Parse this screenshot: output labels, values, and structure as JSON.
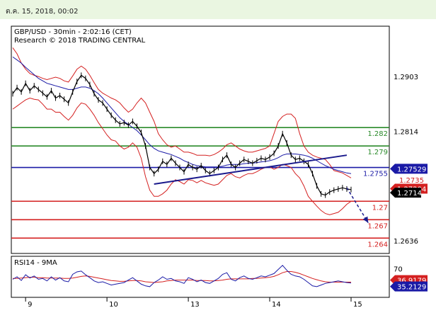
{
  "header": {
    "timestamp": "ต.ค. 15, 2018, 00:02"
  },
  "chart_data": [
    {
      "type": "line",
      "title": "GBP/USD - 30min - 2:02:16 (CET)",
      "subtitle": "Research © 2018 TRADING CENTRAL",
      "ylim": [
        1.2615,
        1.2985
      ],
      "y_ticks": [
        {
          "value": 1.2903,
          "label": "1.2903"
        },
        {
          "value": 1.2814,
          "label": "1.2814"
        },
        {
          "value": 1.2636,
          "label": "1.2636"
        }
      ],
      "x_ticks": [
        {
          "index": 3,
          "label": "9"
        },
        {
          "index": 22,
          "label": "10"
        },
        {
          "index": 41,
          "label": "13"
        },
        {
          "index": 60,
          "label": "14"
        },
        {
          "index": 79,
          "label": "15"
        }
      ],
      "levels": [
        {
          "value": 1.282,
          "label": "1.282",
          "color": "#2a8a2a"
        },
        {
          "value": 1.279,
          "label": "1.279",
          "color": "#2a8a2a"
        },
        {
          "value": 1.2755,
          "label": "1.2755",
          "color": "#1a1aa6"
        },
        {
          "value": 1.27,
          "label": "1.27",
          "color": "#d42020"
        },
        {
          "value": 1.267,
          "label": "1.267",
          "color": "#d42020"
        },
        {
          "value": 1.264,
          "label": "1.264",
          "color": "#d42020"
        }
      ],
      "price_boxes": [
        {
          "value": 1.27529,
          "label": "1.27529",
          "bg": "#1a1aa6",
          "fg": "#ffffff"
        },
        {
          "value": 1.27204,
          "label": "1.27204",
          "bg": "#d42020",
          "fg": "#ffffff"
        },
        {
          "value": 1.2714,
          "label": "1.2714",
          "bg": "#000000",
          "fg": "#ffffff"
        }
      ],
      "partial_price_label": "1.2735",
      "trendline": {
        "from": [
          33,
          1.2728
        ],
        "to": [
          78,
          1.2775
        ]
      },
      "forecast_arrow": {
        "from": [
          78,
          1.2722
        ],
        "to": [
          83,
          1.2665
        ]
      },
      "series": [
        {
          "color": "#000000",
          "values": [
            1.2875,
            1.2885,
            1.2878,
            1.2892,
            1.288,
            1.2888,
            1.2882,
            1.2876,
            1.287,
            1.288,
            1.2868,
            1.2872,
            1.2866,
            1.286,
            1.2878,
            1.2895,
            1.2905,
            1.29,
            1.289,
            1.2875,
            1.2865,
            1.286,
            1.285,
            1.284,
            1.2832,
            1.2826,
            1.2828,
            1.2824,
            1.283,
            1.2822,
            1.2812,
            1.279,
            1.2755,
            1.2745,
            1.2752,
            1.2765,
            1.276,
            1.277,
            1.2762,
            1.2755,
            1.2748,
            1.276,
            1.2755,
            1.2752,
            1.2758,
            1.275,
            1.2745,
            1.275,
            1.2755,
            1.2768,
            1.2775,
            1.276,
            1.2755,
            1.2762,
            1.2768,
            1.2765,
            1.2762,
            1.2766,
            1.277,
            1.2768,
            1.2772,
            1.2778,
            1.279,
            1.281,
            1.2795,
            1.2775,
            1.2768,
            1.277,
            1.2765,
            1.276,
            1.2745,
            1.2725,
            1.2712,
            1.271,
            1.2715,
            1.2718,
            1.272,
            1.2722,
            1.272,
            1.2719
          ]
        },
        {
          "color": "#1a1aa6",
          "values": [
            1.2935,
            1.293,
            1.2925,
            1.2918,
            1.2912,
            1.2906,
            1.29,
            1.2896,
            1.2892,
            1.289,
            1.2888,
            1.2886,
            1.2884,
            1.2882,
            1.2882,
            1.2884,
            1.2886,
            1.2886,
            1.2884,
            1.288,
            1.2875,
            1.2868,
            1.286,
            1.2852,
            1.2844,
            1.2836,
            1.283,
            1.2825,
            1.282,
            1.2815,
            1.2808,
            1.28,
            1.2792,
            1.2786,
            1.2782,
            1.278,
            1.2778,
            1.2776,
            1.2773,
            1.277,
            1.2766,
            1.2763,
            1.276,
            1.2758,
            1.2757,
            1.2756,
            1.2756,
            1.2756,
            1.2756,
            1.2757,
            1.2759,
            1.276,
            1.276,
            1.276,
            1.2761,
            1.2762,
            1.2762,
            1.2763,
            1.2764,
            1.2765,
            1.2766,
            1.2768,
            1.2771,
            1.2775,
            1.2777,
            1.2777,
            1.2777,
            1.2776,
            1.2775,
            1.2773,
            1.277,
            1.2766,
            1.2762,
            1.2758,
            1.2755,
            1.2752,
            1.275,
            1.2748,
            1.2746,
            1.2745
          ]
        },
        {
          "color": "#d42020",
          "values": [
            1.295,
            1.294,
            1.2925,
            1.2915,
            1.2908,
            1.2905,
            1.2903,
            1.29,
            1.2898,
            1.29,
            1.2902,
            1.29,
            1.2896,
            1.2894,
            1.2904,
            1.2915,
            1.292,
            1.2915,
            1.2905,
            1.2893,
            1.2882,
            1.2876,
            1.2872,
            1.2868,
            1.2865,
            1.286,
            1.2852,
            1.2845,
            1.285,
            1.286,
            1.2868,
            1.286,
            1.2845,
            1.283,
            1.281,
            1.28,
            1.2792,
            1.2788,
            1.279,
            1.2785,
            1.278,
            1.278,
            1.2778,
            1.2775,
            1.2775,
            1.2775,
            1.2774,
            1.2776,
            1.278,
            1.2785,
            1.2792,
            1.2795,
            1.279,
            1.2785,
            1.2782,
            1.278,
            1.278,
            1.2782,
            1.2784,
            1.2786,
            1.279,
            1.281,
            1.283,
            1.2838,
            1.2842,
            1.2842,
            1.2835,
            1.281,
            1.279,
            1.278,
            1.2775,
            1.2772,
            1.277,
            1.2768,
            1.276,
            1.275,
            1.2748,
            1.2746,
            1.2742,
            1.2738
          ]
        },
        {
          "color": "#d42020",
          "values": [
            1.285,
            1.2855,
            1.286,
            1.2865,
            1.2868,
            1.2866,
            1.2865,
            1.2858,
            1.285,
            1.285,
            1.2845,
            1.2845,
            1.2838,
            1.2832,
            1.284,
            1.2852,
            1.286,
            1.2858,
            1.285,
            1.284,
            1.2828,
            1.2818,
            1.2808,
            1.28,
            1.2798,
            1.279,
            1.2785,
            1.2788,
            1.2795,
            1.2788,
            1.277,
            1.274,
            1.2718,
            1.2708,
            1.2708,
            1.2712,
            1.2718,
            1.2728,
            1.2735,
            1.2732,
            1.2728,
            1.2735,
            1.2734,
            1.273,
            1.2734,
            1.273,
            1.2728,
            1.2726,
            1.2728,
            1.2735,
            1.2742,
            1.2745,
            1.274,
            1.2738,
            1.2742,
            1.2745,
            1.2745,
            1.2748,
            1.2752,
            1.2755,
            1.2756,
            1.2752,
            1.2755,
            1.276,
            1.2758,
            1.2755,
            1.2745,
            1.2738,
            1.2725,
            1.2708,
            1.27,
            1.2692,
            1.2685,
            1.268,
            1.2678,
            1.268,
            1.2682,
            1.2688,
            1.2695,
            1.27
          ]
        }
      ]
    },
    {
      "type": "line",
      "title": "RSI14 - 9MA",
      "ylim": [
        0,
        100
      ],
      "y_ticks": [
        {
          "value": 70,
          "label": "70"
        },
        {
          "value": 30,
          "label": "30"
        }
      ],
      "price_boxes": [
        {
          "value": 36.9179,
          "label": "36.9179",
          "bg": "#d42020",
          "fg": "#ffffff"
        },
        {
          "value": 35.2129,
          "label": "35.2129",
          "bg": "#1a1aa6",
          "fg": "#ffffff"
        }
      ],
      "series": [
        {
          "color": "#d42020",
          "values": [
            46,
            46,
            47,
            48,
            49,
            49,
            48,
            48,
            47,
            47,
            47,
            47,
            46,
            46,
            47,
            49,
            51,
            52,
            51,
            49,
            47,
            45,
            43,
            41,
            40,
            39,
            39,
            40,
            41,
            41,
            40,
            38,
            37,
            36,
            37,
            38,
            40,
            41,
            42,
            42,
            42,
            42,
            42,
            41,
            41,
            41,
            40,
            40,
            41,
            42,
            44,
            45,
            45,
            45,
            45,
            45,
            46,
            46,
            47,
            48,
            49,
            51,
            55,
            60,
            63,
            63,
            61,
            58,
            54,
            50,
            46,
            43,
            40,
            38,
            37,
            37,
            37,
            37,
            37,
            37
          ]
        },
        {
          "color": "#1a1aa6",
          "values": [
            44,
            50,
            41,
            55,
            47,
            52,
            44,
            46,
            40,
            50,
            42,
            48,
            40,
            38,
            56,
            62,
            64,
            55,
            48,
            40,
            36,
            38,
            34,
            30,
            32,
            34,
            36,
            42,
            48,
            40,
            32,
            28,
            26,
            36,
            42,
            50,
            44,
            46,
            40,
            38,
            34,
            48,
            44,
            38,
            42,
            36,
            34,
            40,
            46,
            56,
            60,
            44,
            40,
            48,
            52,
            46,
            44,
            48,
            52,
            50,
            54,
            58,
            68,
            78,
            66,
            56,
            52,
            50,
            44,
            36,
            28,
            26,
            30,
            34,
            36,
            38,
            40,
            38,
            36,
            35
          ]
        }
      ]
    }
  ]
}
